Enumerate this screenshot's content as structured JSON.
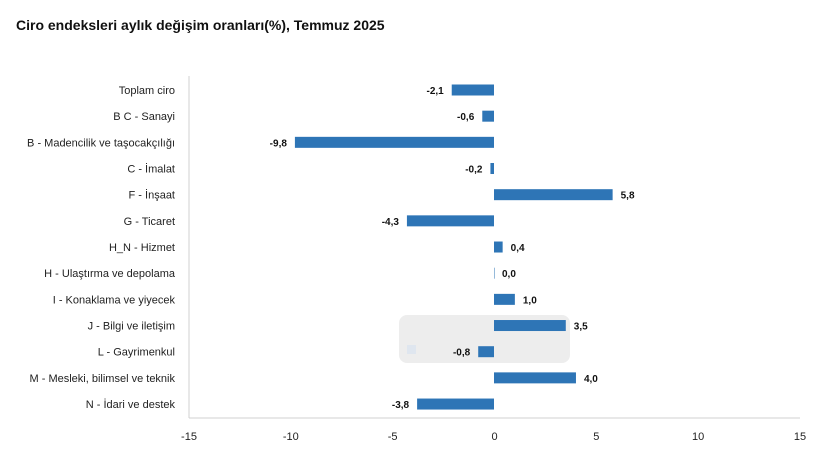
{
  "chart_data": {
    "type": "bar",
    "orientation": "horizontal",
    "title": "Ciro endeksleri aylık değişim oranları(%), Temmuz 2025",
    "categories": [
      "Toplam ciro",
      "B C - Sanayi",
      "B - Madencilik ve taşocakçılığı",
      "C - İmalat",
      "F - İnşaat",
      "G - Ticaret",
      "H_N - Hizmet",
      "H - Ulaştırma ve depolama",
      "I - Konaklama ve yiyecek",
      "J - Bilgi ve iletişim",
      "L - Gayrimenkul",
      "M - Mesleki, bilimsel ve teknik",
      "N - İdari ve destek"
    ],
    "values": [
      -2.1,
      -0.6,
      -9.8,
      -0.2,
      5.8,
      -4.3,
      0.4,
      0.0,
      1.0,
      3.5,
      -0.8,
      4.0,
      -3.8
    ],
    "value_labels": [
      "-2,1",
      "-0,6",
      "-9,8",
      "-0,2",
      "5,8",
      "-4,3",
      "0,4",
      "0,0",
      "1,0",
      "3,5",
      "-0,8",
      "4,0",
      "-3,8"
    ],
    "xlim": [
      -15,
      15
    ],
    "xticks": [
      -15,
      -10,
      -5,
      0,
      5,
      10,
      15
    ],
    "xlabel": "",
    "ylabel": "",
    "grid": false,
    "bar_color": "#2e75b6"
  }
}
